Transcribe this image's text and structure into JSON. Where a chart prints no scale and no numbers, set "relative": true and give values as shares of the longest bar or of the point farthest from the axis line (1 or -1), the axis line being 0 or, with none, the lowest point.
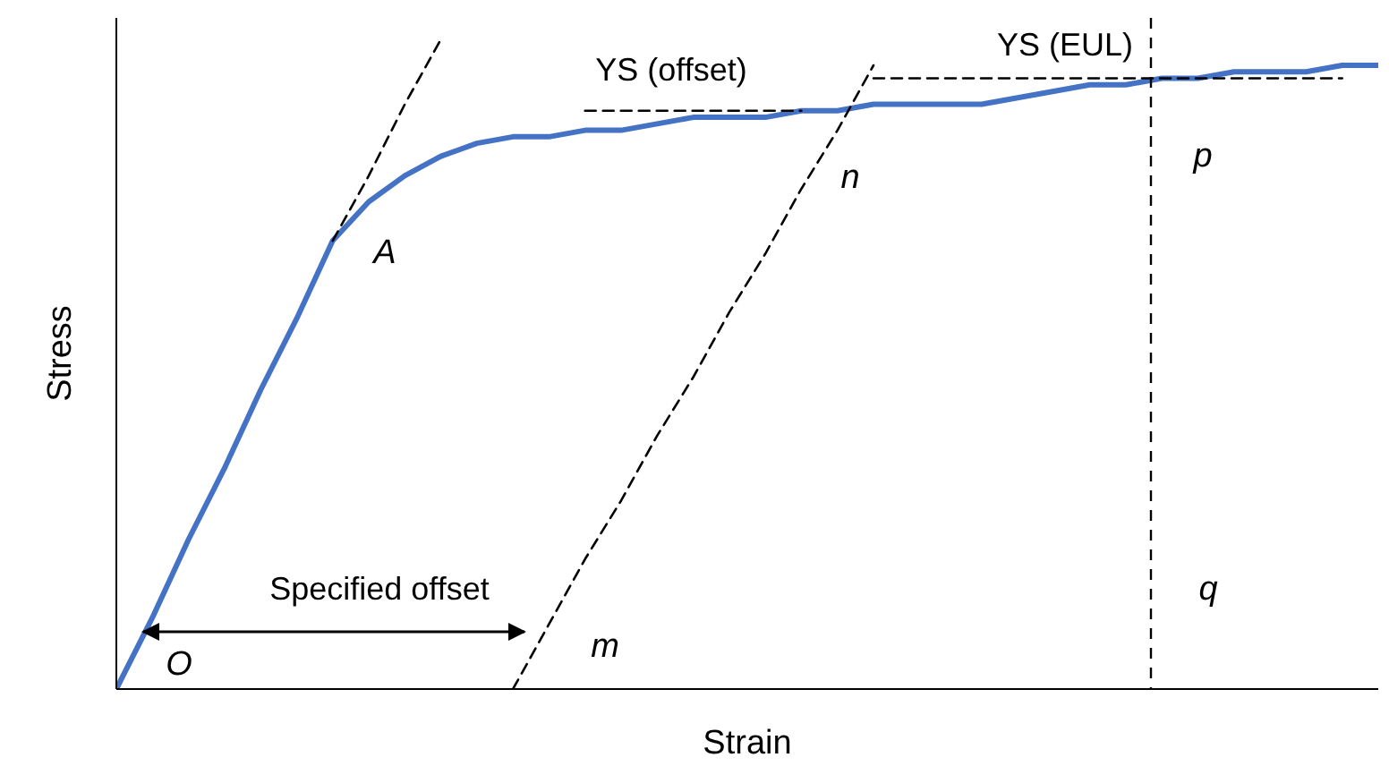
{
  "chart_data": {
    "type": "line",
    "relative": true,
    "xlabel": "Strain",
    "ylabel": "Stress",
    "marker": "none",
    "categories": [
      null,
      null,
      null,
      null,
      null,
      null,
      null,
      null,
      null,
      null,
      null,
      null,
      null,
      null,
      null,
      null,
      null,
      null,
      null,
      null,
      null,
      null,
      null,
      null,
      null,
      null,
      null,
      null,
      null,
      null,
      null,
      null,
      null,
      null,
      null,
      null
    ],
    "series": [
      {
        "color": "#4472c4",
        "line_style": "solid",
        "values": [
          0,
          0.11,
          0.23,
          0.34,
          0.46,
          0.57,
          0.69,
          0.75,
          0.79,
          0.82,
          0.84,
          0.85,
          0.85,
          0.86,
          0.86,
          0.87,
          0.88,
          0.88,
          0.88,
          0.89,
          0.89,
          0.9,
          0.9,
          0.9,
          0.9,
          0.91,
          0.92,
          0.93,
          0.93,
          0.94,
          0.94,
          0.95,
          0.95,
          0.95,
          0.96,
          0.96
        ]
      },
      {
        "color": "#000000",
        "line_style": "dashed",
        "values": [
          null,
          null,
          null,
          null,
          null,
          null,
          0.69,
          0.79,
          0.9,
          1,
          null,
          null,
          null,
          null,
          null,
          null,
          null,
          null,
          null,
          null,
          null,
          null,
          null,
          null,
          null,
          null,
          null,
          null,
          null,
          null,
          null,
          null,
          null,
          null,
          null,
          null
        ]
      },
      {
        "color": "#000000",
        "line_style": "dashed",
        "values": [
          null,
          null,
          null,
          null,
          null,
          null,
          null,
          null,
          null,
          null,
          null,
          0,
          0.1,
          0.2,
          0.29,
          0.39,
          0.48,
          0.58,
          0.67,
          0.77,
          0.86,
          0.96,
          null,
          null,
          null,
          null,
          null,
          null,
          null,
          null,
          null,
          null,
          null,
          null,
          null,
          null
        ]
      },
      {
        "color": "#000000",
        "line_style": "dashed",
        "values": [
          null,
          null,
          null,
          null,
          null,
          null,
          null,
          null,
          null,
          null,
          null,
          null,
          null,
          0.89,
          0.89,
          0.89,
          0.89,
          0.89,
          0.89,
          0.89,
          null,
          null,
          null,
          null,
          null,
          null,
          null,
          null,
          null,
          null,
          null,
          null,
          null,
          null,
          null,
          null
        ]
      },
      {
        "color": "#000000",
        "line_style": "dashed",
        "values": [
          null,
          null,
          null,
          null,
          null,
          null,
          null,
          null,
          null,
          null,
          null,
          null,
          null,
          null,
          null,
          null,
          null,
          null,
          null,
          null,
          null,
          0.94,
          0.94,
          0.94,
          0.94,
          0.94,
          0.94,
          0.94,
          0.94,
          0.94,
          0.94,
          0.94,
          0.94,
          0.94,
          0.94,
          null
        ]
      }
    ],
    "annotations": [
      "A",
      "O",
      "m",
      "n",
      "p",
      "q",
      "YS (offset)",
      "YS (EUL)",
      "Specified offset"
    ]
  }
}
